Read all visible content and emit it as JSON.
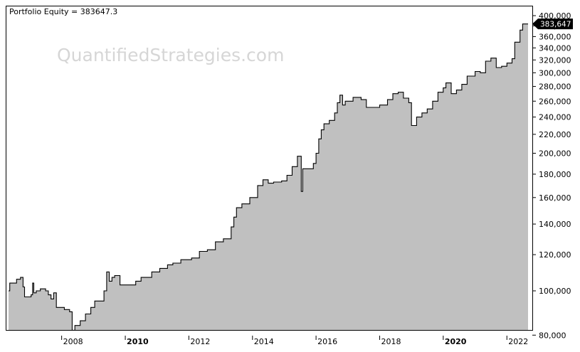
{
  "header": {
    "title": "Portfolio Equity = 383647.3"
  },
  "watermark": {
    "text": "QuantifiedStrategies.com"
  },
  "last_value_badge": {
    "label": "383,647",
    "value": 383647.3
  },
  "colors": {
    "area_fill": "#c0c0c0",
    "line": "#000000",
    "badge_bg": "#000000",
    "badge_text": "#ffffff",
    "watermark": "#d6d6d6",
    "frame": "#000000"
  },
  "chart_data": {
    "type": "area",
    "title": "Portfolio Equity = 383647.3",
    "xlabel": "",
    "ylabel": "",
    "y_scale": "log",
    "ylim": [
      80000,
      410000
    ],
    "xlim": [
      "2006-05-01",
      "2022-09-01"
    ],
    "grid": false,
    "y_axis_position": "right",
    "yticks": [
      {
        "value": 80000,
        "label": "80,000"
      },
      {
        "value": 100000,
        "label": "100,000"
      },
      {
        "value": 120000,
        "label": "120,000"
      },
      {
        "value": 140000,
        "label": "140,000"
      },
      {
        "value": 160000,
        "label": "160,000"
      },
      {
        "value": 180000,
        "label": "180,000"
      },
      {
        "value": 200000,
        "label": "200,000"
      },
      {
        "value": 220000,
        "label": "220,000"
      },
      {
        "value": 240000,
        "label": "240,000"
      },
      {
        "value": 260000,
        "label": "260,000"
      },
      {
        "value": 280000,
        "label": "280,000"
      },
      {
        "value": 300000,
        "label": "300,000"
      },
      {
        "value": 320000,
        "label": "320,000"
      },
      {
        "value": 340000,
        "label": "340,000"
      },
      {
        "value": 360000,
        "label": "360,000"
      },
      {
        "value": 380000,
        "label": "380,000"
      },
      {
        "value": 400000,
        "label": "400,000"
      }
    ],
    "xticks": [
      {
        "date": "2008-01-01",
        "label": "2008",
        "bold": false
      },
      {
        "date": "2010-01-01",
        "label": "2010",
        "bold": true
      },
      {
        "date": "2012-01-01",
        "label": "2012",
        "bold": false
      },
      {
        "date": "2014-01-01",
        "label": "2014",
        "bold": false
      },
      {
        "date": "2016-01-01",
        "label": "2016",
        "bold": false
      },
      {
        "date": "2018-01-01",
        "label": "2018",
        "bold": false
      },
      {
        "date": "2020-01-01",
        "label": "2020",
        "bold": true
      },
      {
        "date": "2022-01-01",
        "label": "2022",
        "bold": false
      }
    ],
    "series": [
      {
        "values": [
          [
            "2006-05-01",
            100000
          ],
          [
            "2006-05-15",
            104000
          ],
          [
            "2006-07-15",
            104000
          ],
          [
            "2006-08-01",
            106000
          ],
          [
            "2006-09-15",
            107000
          ],
          [
            "2006-10-15",
            102000
          ],
          [
            "2006-11-01",
            97000
          ],
          [
            "2007-01-15",
            98000
          ],
          [
            "2007-02-01",
            104000
          ],
          [
            "2007-02-15",
            99000
          ],
          [
            "2007-03-15",
            100000
          ],
          [
            "2007-05-01",
            101000
          ],
          [
            "2007-07-01",
            100000
          ],
          [
            "2007-08-01",
            98000
          ],
          [
            "2007-09-01",
            96000
          ],
          [
            "2007-10-01",
            99000
          ],
          [
            "2007-11-01",
            92000
          ],
          [
            "2008-02-01",
            91000
          ],
          [
            "2008-04-01",
            90000
          ],
          [
            "2008-05-01",
            82000
          ],
          [
            "2008-06-01",
            84000
          ],
          [
            "2008-08-01",
            86000
          ],
          [
            "2008-10-01",
            89000
          ],
          [
            "2008-12-01",
            92000
          ],
          [
            "2009-01-15",
            95000
          ],
          [
            "2009-03-01",
            95000
          ],
          [
            "2009-05-01",
            100000
          ],
          [
            "2009-06-01",
            110000
          ],
          [
            "2009-07-01",
            105000
          ],
          [
            "2009-08-01",
            107000
          ],
          [
            "2009-09-01",
            108000
          ],
          [
            "2009-10-01",
            108000
          ],
          [
            "2009-11-01",
            103000
          ],
          [
            "2010-01-01",
            103000
          ],
          [
            "2010-03-01",
            103000
          ],
          [
            "2010-05-01",
            105000
          ],
          [
            "2010-07-01",
            107000
          ],
          [
            "2010-09-01",
            107000
          ],
          [
            "2010-11-01",
            110000
          ],
          [
            "2011-02-01",
            112000
          ],
          [
            "2011-05-01",
            114000
          ],
          [
            "2011-07-01",
            115000
          ],
          [
            "2011-10-01",
            117000
          ],
          [
            "2012-02-01",
            118000
          ],
          [
            "2012-05-01",
            122000
          ],
          [
            "2012-08-01",
            123000
          ],
          [
            "2012-11-01",
            128000
          ],
          [
            "2013-02-01",
            130000
          ],
          [
            "2013-05-01",
            138000
          ],
          [
            "2013-06-01",
            145000
          ],
          [
            "2013-07-01",
            152000
          ],
          [
            "2013-09-01",
            155000
          ],
          [
            "2013-12-01",
            160000
          ],
          [
            "2014-03-01",
            170000
          ],
          [
            "2014-05-01",
            175000
          ],
          [
            "2014-07-01",
            172000
          ],
          [
            "2014-09-01",
            173000
          ],
          [
            "2014-12-01",
            174000
          ],
          [
            "2015-02-01",
            179000
          ],
          [
            "2015-04-01",
            187000
          ],
          [
            "2015-06-01",
            197000
          ],
          [
            "2015-07-15",
            165000
          ],
          [
            "2015-08-01",
            185000
          ],
          [
            "2015-10-01",
            185000
          ],
          [
            "2015-12-01",
            190000
          ],
          [
            "2016-01-01",
            200000
          ],
          [
            "2016-02-01",
            215000
          ],
          [
            "2016-03-01",
            225000
          ],
          [
            "2016-04-01",
            232000
          ],
          [
            "2016-06-01",
            236000
          ],
          [
            "2016-08-01",
            245000
          ],
          [
            "2016-09-01",
            258000
          ],
          [
            "2016-10-01",
            268000
          ],
          [
            "2016-11-01",
            255000
          ],
          [
            "2016-12-01",
            260000
          ],
          [
            "2017-03-01",
            265000
          ],
          [
            "2017-06-01",
            262000
          ],
          [
            "2017-08-01",
            252000
          ],
          [
            "2017-10-01",
            252000
          ],
          [
            "2018-01-01",
            255000
          ],
          [
            "2018-04-01",
            262000
          ],
          [
            "2018-06-01",
            270000
          ],
          [
            "2018-08-01",
            272000
          ],
          [
            "2018-10-01",
            264000
          ],
          [
            "2018-12-01",
            258000
          ],
          [
            "2019-01-01",
            230000
          ],
          [
            "2019-03-01",
            240000
          ],
          [
            "2019-05-01",
            245000
          ],
          [
            "2019-07-01",
            250000
          ],
          [
            "2019-09-01",
            260000
          ],
          [
            "2019-11-01",
            272000
          ],
          [
            "2020-01-01",
            278000
          ],
          [
            "2020-02-01",
            285000
          ],
          [
            "2020-04-01",
            270000
          ],
          [
            "2020-06-01",
            275000
          ],
          [
            "2020-08-01",
            283000
          ],
          [
            "2020-10-01",
            295000
          ],
          [
            "2021-01-01",
            302000
          ],
          [
            "2021-03-01",
            300000
          ],
          [
            "2021-05-01",
            318000
          ],
          [
            "2021-07-01",
            323000
          ],
          [
            "2021-09-01",
            308000
          ],
          [
            "2021-11-01",
            310000
          ],
          [
            "2022-01-01",
            315000
          ],
          [
            "2022-03-01",
            322000
          ],
          [
            "2022-04-01",
            350000
          ],
          [
            "2022-06-01",
            372000
          ],
          [
            "2022-07-01",
            383647.3
          ],
          [
            "2022-09-01",
            383647.3
          ]
        ]
      }
    ]
  }
}
